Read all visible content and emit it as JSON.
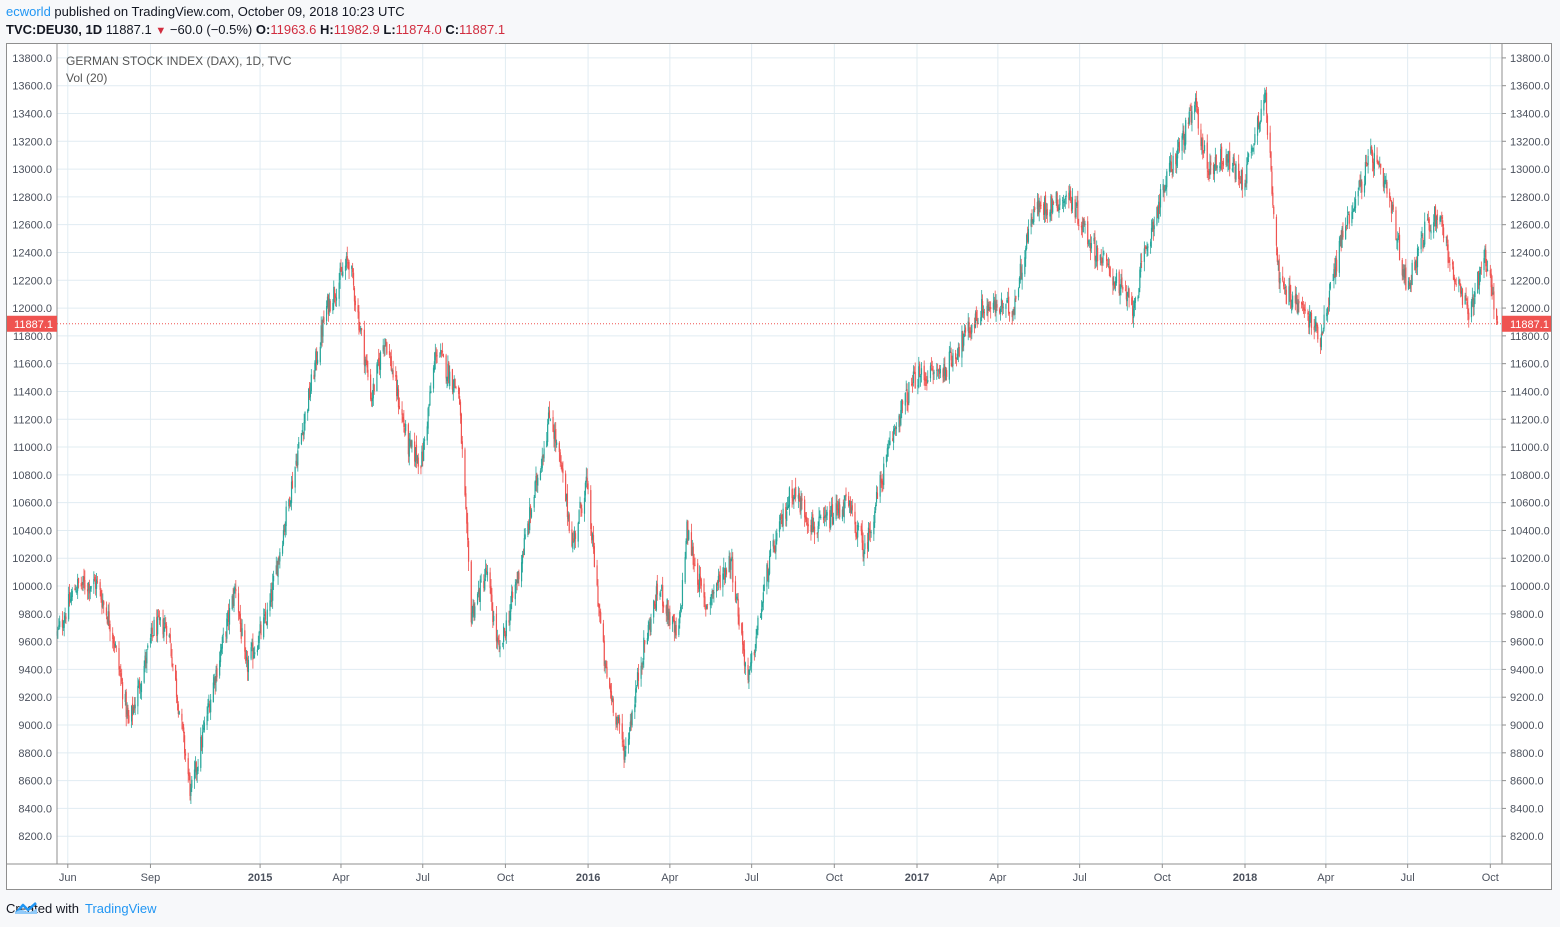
{
  "header": {
    "author": "ecworld",
    "published_text": " published on TradingView.com, October 09, 2018 10:23 UTC",
    "symbol": "TVC:DEU30, 1D",
    "last": "11887.1",
    "change_arrow": "▼",
    "change": "−60.0 (−0.5%)",
    "o_label": "O:",
    "o_value": "11963.6",
    "h_label": "H:",
    "h_value": "11982.9",
    "l_label": "L:",
    "l_value": "11874.0",
    "c_label": "C:",
    "c_value": "11887.1"
  },
  "legend": {
    "series": "GERMAN STOCK INDEX (DAX), 1D, TVC",
    "volume": "Vol (20)"
  },
  "footer": {
    "created_with": "Created with",
    "brand": "TradingView"
  },
  "colors": {
    "up": "#26a69a",
    "down": "#ef5350",
    "grid": "#e1ecf2",
    "price_line": "#ef5350",
    "price_label_bg": "#ef5350"
  },
  "chart_data": {
    "type": "candlestick",
    "title": "GERMAN STOCK INDEX (DAX), 1D, TVC",
    "ylim": [
      8000,
      13900
    ],
    "y_ticks": [
      8200,
      8400,
      8600,
      8800,
      9000,
      9200,
      9400,
      9600,
      9800,
      10000,
      10200,
      10400,
      10600,
      10800,
      11000,
      11200,
      11400,
      11600,
      11800,
      12000,
      12200,
      12400,
      12600,
      12800,
      13000,
      13200,
      13400,
      13600,
      13800
    ],
    "x_range": [
      "2014-05-20",
      "2018-10-14"
    ],
    "x_ticks": [
      {
        "label": "Jun",
        "date": "2014-06-01",
        "bold": false
      },
      {
        "label": "Sep",
        "date": "2014-09-01",
        "bold": false
      },
      {
        "label": "2015",
        "date": "2015-01-01",
        "bold": true
      },
      {
        "label": "Apr",
        "date": "2015-04-01",
        "bold": false
      },
      {
        "label": "Jul",
        "date": "2015-07-01",
        "bold": false
      },
      {
        "label": "Oct",
        "date": "2015-10-01",
        "bold": false
      },
      {
        "label": "2016",
        "date": "2016-01-01",
        "bold": true
      },
      {
        "label": "Apr",
        "date": "2016-04-01",
        "bold": false
      },
      {
        "label": "Jul",
        "date": "2016-07-01",
        "bold": false
      },
      {
        "label": "Oct",
        "date": "2016-10-01",
        "bold": false
      },
      {
        "label": "2017",
        "date": "2017-01-01",
        "bold": true
      },
      {
        "label": "Apr",
        "date": "2017-04-01",
        "bold": false
      },
      {
        "label": "Jul",
        "date": "2017-07-01",
        "bold": false
      },
      {
        "label": "Oct",
        "date": "2017-10-01",
        "bold": false
      },
      {
        "label": "2018",
        "date": "2018-01-01",
        "bold": true
      },
      {
        "label": "Apr",
        "date": "2018-04-01",
        "bold": false
      },
      {
        "label": "Jul",
        "date": "2018-07-01",
        "bold": false
      },
      {
        "label": "Oct",
        "date": "2018-10-01",
        "bold": false
      }
    ],
    "last_price": 11887.1,
    "last_price_label": "11887.1",
    "price_path": [
      {
        "date": "2014-05-20",
        "close": 9650
      },
      {
        "date": "2014-06-10",
        "close": 10000
      },
      {
        "date": "2014-07-03",
        "close": 10020
      },
      {
        "date": "2014-07-20",
        "close": 9700
      },
      {
        "date": "2014-08-08",
        "close": 9000
      },
      {
        "date": "2014-09-05",
        "close": 9700
      },
      {
        "date": "2014-09-20",
        "close": 9720
      },
      {
        "date": "2014-10-16",
        "close": 8500
      },
      {
        "date": "2014-11-10",
        "close": 9300
      },
      {
        "date": "2014-12-05",
        "close": 10000
      },
      {
        "date": "2014-12-16",
        "close": 9400
      },
      {
        "date": "2015-01-10",
        "close": 9800
      },
      {
        "date": "2015-02-10",
        "close": 10900
      },
      {
        "date": "2015-03-16",
        "close": 12000
      },
      {
        "date": "2015-04-10",
        "close": 12350
      },
      {
        "date": "2015-05-05",
        "close": 11350
      },
      {
        "date": "2015-05-20",
        "close": 11800
      },
      {
        "date": "2015-06-15",
        "close": 11000
      },
      {
        "date": "2015-06-30",
        "close": 10900
      },
      {
        "date": "2015-07-16",
        "close": 11700
      },
      {
        "date": "2015-08-10",
        "close": 11400
      },
      {
        "date": "2015-08-24",
        "close": 9800
      },
      {
        "date": "2015-09-10",
        "close": 10100
      },
      {
        "date": "2015-09-24",
        "close": 9500
      },
      {
        "date": "2015-10-16",
        "close": 10100
      },
      {
        "date": "2015-11-20",
        "close": 11250
      },
      {
        "date": "2015-12-03",
        "close": 10800
      },
      {
        "date": "2015-12-15",
        "close": 10300
      },
      {
        "date": "2015-12-30",
        "close": 10750
      },
      {
        "date": "2016-01-20",
        "close": 9400
      },
      {
        "date": "2016-02-11",
        "close": 8800
      },
      {
        "date": "2016-03-01",
        "close": 9500
      },
      {
        "date": "2016-03-20",
        "close": 10000
      },
      {
        "date": "2016-04-10",
        "close": 9600
      },
      {
        "date": "2016-04-20",
        "close": 10400
      },
      {
        "date": "2016-05-10",
        "close": 9850
      },
      {
        "date": "2016-06-08",
        "close": 10200
      },
      {
        "date": "2016-06-27",
        "close": 9300
      },
      {
        "date": "2016-07-20",
        "close": 10150
      },
      {
        "date": "2016-08-15",
        "close": 10700
      },
      {
        "date": "2016-09-10",
        "close": 10400
      },
      {
        "date": "2016-10-15",
        "close": 10600
      },
      {
        "date": "2016-11-04",
        "close": 10250
      },
      {
        "date": "2016-11-20",
        "close": 10700
      },
      {
        "date": "2016-12-10",
        "close": 11200
      },
      {
        "date": "2016-12-30",
        "close": 11500
      },
      {
        "date": "2017-01-31",
        "close": 11550
      },
      {
        "date": "2017-03-15",
        "close": 12000
      },
      {
        "date": "2017-04-18",
        "close": 12000
      },
      {
        "date": "2017-05-10",
        "close": 12700
      },
      {
        "date": "2017-06-20",
        "close": 12800
      },
      {
        "date": "2017-07-15",
        "close": 12450
      },
      {
        "date": "2017-08-05",
        "close": 12250
      },
      {
        "date": "2017-08-29",
        "close": 12000
      },
      {
        "date": "2017-09-20",
        "close": 12600
      },
      {
        "date": "2017-10-10",
        "close": 13000
      },
      {
        "date": "2017-11-07",
        "close": 13450
      },
      {
        "date": "2017-11-20",
        "close": 13000
      },
      {
        "date": "2017-12-10",
        "close": 13100
      },
      {
        "date": "2017-12-30",
        "close": 12900
      },
      {
        "date": "2018-01-23",
        "close": 13550
      },
      {
        "date": "2018-02-09",
        "close": 12150
      },
      {
        "date": "2018-03-05",
        "close": 12000
      },
      {
        "date": "2018-03-26",
        "close": 11800
      },
      {
        "date": "2018-04-20",
        "close": 12550
      },
      {
        "date": "2018-05-22",
        "close": 13100
      },
      {
        "date": "2018-06-10",
        "close": 12800
      },
      {
        "date": "2018-06-30",
        "close": 12150
      },
      {
        "date": "2018-07-20",
        "close": 12550
      },
      {
        "date": "2018-08-05",
        "close": 12700
      },
      {
        "date": "2018-08-20",
        "close": 12250
      },
      {
        "date": "2018-09-07",
        "close": 11950
      },
      {
        "date": "2018-09-25",
        "close": 12400
      },
      {
        "date": "2018-10-09",
        "close": 11887.1
      }
    ]
  }
}
